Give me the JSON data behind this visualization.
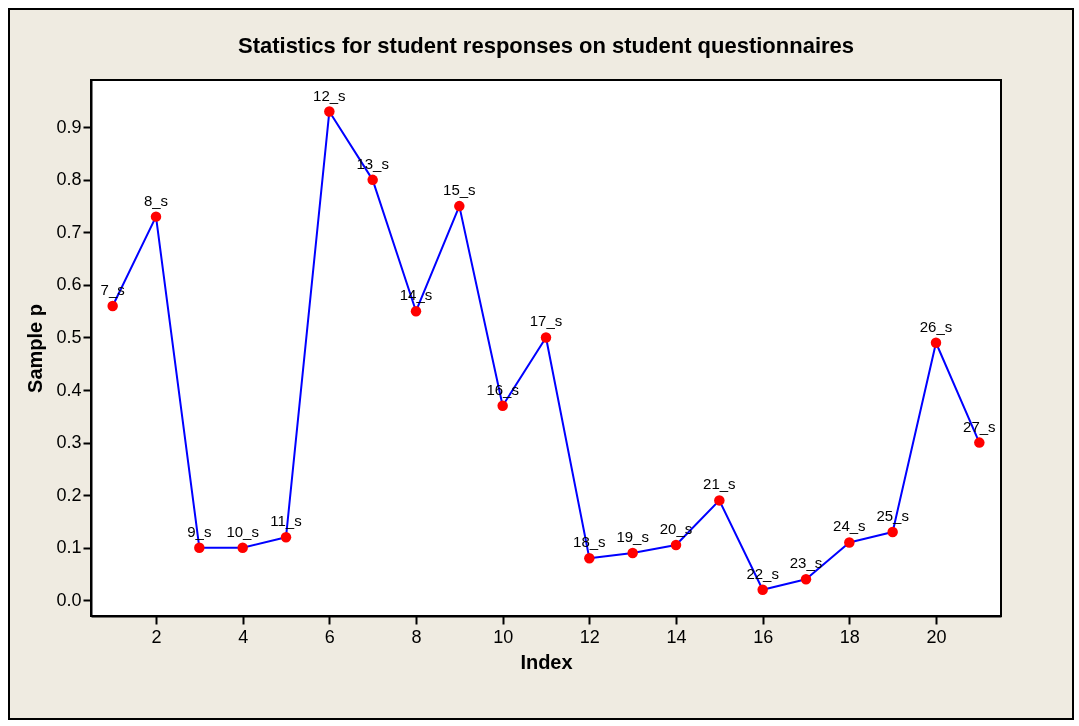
{
  "chart_data": {
    "type": "line",
    "title": "Statistics for student responses on student questionnaires",
    "xlabel": "Index",
    "ylabel": "Sample p",
    "x": [
      1,
      2,
      3,
      4,
      5,
      6,
      7,
      8,
      9,
      10,
      11,
      12,
      13,
      14,
      15,
      16,
      17,
      18,
      19,
      20,
      21
    ],
    "series": [
      {
        "color": "#0000ff",
        "colors": [
          "#ff0000",
          "#ff0000",
          "#ff0000",
          "#ff0000",
          "#ff0000",
          "#ff0000",
          "#ff0000",
          "#ff0000",
          "#ff0000",
          "#ff0000",
          "#ff0000",
          "#ff0000",
          "#ff0000",
          "#ff0000",
          "#ff0000",
          "#ff0000",
          "#ff0000",
          "#ff0000",
          "#ff0000",
          "#ff0000",
          "#ff0000"
        ],
        "values": [
          0.56,
          0.73,
          0.1,
          0.1,
          0.12,
          0.93,
          0.8,
          0.55,
          0.75,
          0.37,
          0.5,
          0.08,
          0.09,
          0.105,
          0.19,
          0.02,
          0.04,
          0.11,
          0.13,
          0.49,
          0.3
        ]
      }
    ],
    "marker": "circle",
    "line_style": "solid",
    "xlim": [
      0.5,
      21.5
    ],
    "xticks": [
      2,
      4,
      6,
      8,
      10,
      12,
      14,
      16,
      18,
      20
    ],
    "ylim": [
      -0.03,
      0.99
    ],
    "yticks": [
      {
        "value": 0,
        "label": "0.0"
      },
      0.1,
      0.2,
      0.3,
      0.4,
      0.5,
      0.6,
      0.7,
      0.8,
      0.9
    ],
    "annotations": [
      {
        "text": "7_s",
        "x": 1,
        "y": 0.56
      },
      {
        "text": "8_s",
        "x": 2,
        "y": 0.73
      },
      {
        "text": "9_s",
        "x": 3,
        "y": 0.1
      },
      {
        "text": "10_s",
        "x": 4,
        "y": 0.1
      },
      {
        "text": "11_s",
        "x": 5,
        "y": 0.12
      },
      {
        "text": "12_s",
        "x": 6,
        "y": 0.93
      },
      {
        "text": "13_s",
        "x": 7,
        "y": 0.8
      },
      {
        "text": "14_s",
        "x": 8,
        "y": 0.55
      },
      {
        "text": "15_s",
        "x": 9,
        "y": 0.75
      },
      {
        "text": "16_s",
        "x": 10,
        "y": 0.37
      },
      {
        "text": "17_s",
        "x": 11,
        "y": 0.5
      },
      {
        "text": "18_s",
        "x": 12,
        "y": 0.08
      },
      {
        "text": "19_s",
        "x": 13,
        "y": 0.09
      },
      {
        "text": "20_s",
        "x": 14,
        "y": 0.105
      },
      {
        "text": "21_s",
        "x": 15,
        "y": 0.19
      },
      {
        "text": "22_s",
        "x": 16,
        "y": 0.02
      },
      {
        "text": "23_s",
        "x": 17,
        "y": 0.04
      },
      {
        "text": "24_s",
        "x": 18,
        "y": 0.11
      },
      {
        "text": "25_s",
        "x": 19,
        "y": 0.13
      },
      {
        "text": "26_s",
        "x": 20,
        "y": 0.49
      },
      {
        "text": "27_s",
        "x": 21,
        "y": 0.3
      }
    ]
  }
}
